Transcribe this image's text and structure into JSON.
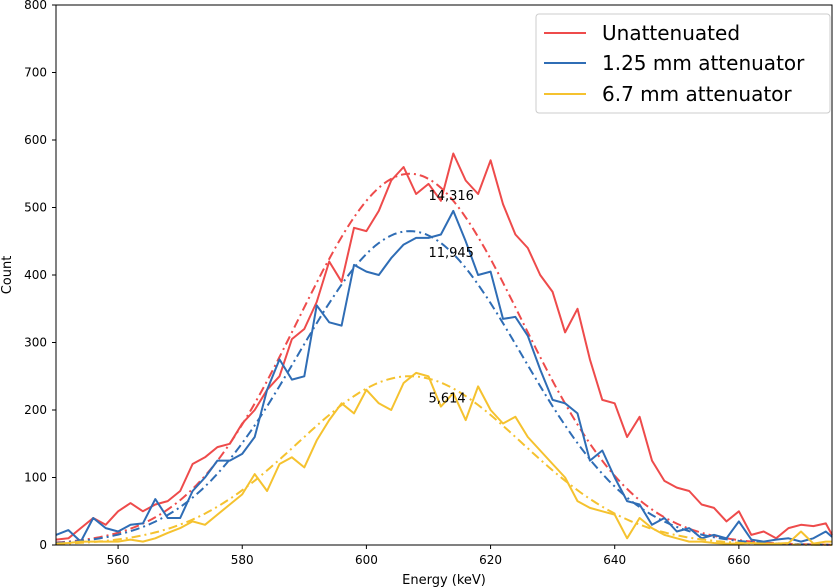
{
  "chart_data": {
    "type": "line",
    "title": "",
    "xlabel": "Energy (keV)",
    "ylabel": "Count",
    "xlim": [
      550,
      675
    ],
    "ylim": [
      0,
      800
    ],
    "xticks": [
      560,
      580,
      600,
      620,
      640,
      660
    ],
    "yticks": [
      0,
      100,
      200,
      300,
      400,
      500,
      600,
      700,
      800
    ],
    "grid": false,
    "legend_position": "top-right",
    "series": [
      {
        "name": "Unattenuated",
        "color": "#ee4b4b",
        "x": [
          550,
          552,
          554,
          556,
          558,
          560,
          562,
          564,
          566,
          568,
          570,
          572,
          574,
          576,
          578,
          580,
          582,
          584,
          586,
          588,
          590,
          592,
          594,
          596,
          598,
          600,
          602,
          604,
          606,
          608,
          610,
          612,
          614,
          616,
          618,
          620,
          622,
          624,
          626,
          628,
          630,
          632,
          634,
          636,
          638,
          640,
          642,
          644,
          646,
          648,
          650,
          652,
          654,
          656,
          658,
          660,
          662,
          664,
          666,
          668,
          670,
          672,
          674,
          675
        ],
        "values": [
          8,
          10,
          25,
          40,
          30,
          50,
          62,
          50,
          60,
          65,
          80,
          120,
          130,
          145,
          150,
          180,
          200,
          230,
          250,
          305,
          320,
          360,
          420,
          390,
          470,
          465,
          495,
          540,
          560,
          520,
          535,
          510,
          580,
          540,
          520,
          570,
          505,
          460,
          440,
          400,
          375,
          315,
          350,
          275,
          215,
          210,
          160,
          190,
          125,
          95,
          85,
          80,
          60,
          55,
          35,
          50,
          15,
          20,
          10,
          25,
          30,
          28,
          32,
          15
        ],
        "fit_peak": 550,
        "fit_center": 607,
        "fit_sigma": 18,
        "annotation": "14,316"
      },
      {
        "name": "1.25 mm attenuator",
        "color": "#2f6db5",
        "x": [
          550,
          552,
          554,
          556,
          558,
          560,
          562,
          564,
          566,
          568,
          570,
          572,
          574,
          576,
          578,
          580,
          582,
          584,
          586,
          588,
          590,
          592,
          594,
          596,
          598,
          600,
          602,
          604,
          606,
          608,
          610,
          612,
          614,
          616,
          618,
          620,
          622,
          624,
          626,
          628,
          630,
          632,
          634,
          636,
          638,
          640,
          642,
          644,
          646,
          648,
          650,
          652,
          654,
          656,
          658,
          660,
          662,
          664,
          666,
          668,
          670,
          672,
          674,
          675
        ],
        "values": [
          15,
          22,
          5,
          40,
          25,
          20,
          30,
          32,
          68,
          40,
          40,
          80,
          100,
          125,
          125,
          135,
          160,
          230,
          275,
          245,
          250,
          355,
          330,
          325,
          415,
          405,
          400,
          425,
          445,
          455,
          455,
          460,
          495,
          450,
          400,
          405,
          335,
          338,
          310,
          260,
          215,
          210,
          195,
          125,
          140,
          100,
          65,
          60,
          30,
          40,
          20,
          25,
          10,
          15,
          10,
          35,
          8,
          5,
          8,
          10,
          5,
          10,
          20,
          12
        ],
        "fit_peak": 465,
        "fit_center": 607,
        "fit_sigma": 18,
        "annotation": "11,945"
      },
      {
        "name": "6.7 mm attenuator",
        "color": "#f5c22f",
        "x": [
          550,
          552,
          554,
          556,
          558,
          560,
          562,
          564,
          566,
          568,
          570,
          572,
          574,
          576,
          578,
          580,
          582,
          584,
          586,
          588,
          590,
          592,
          594,
          596,
          598,
          600,
          602,
          604,
          606,
          608,
          610,
          612,
          614,
          616,
          618,
          620,
          622,
          624,
          626,
          628,
          630,
          632,
          634,
          636,
          638,
          640,
          642,
          644,
          646,
          648,
          650,
          652,
          654,
          656,
          658,
          660,
          662,
          664,
          666,
          668,
          670,
          672,
          674,
          675
        ],
        "values": [
          2,
          3,
          5,
          5,
          5,
          5,
          8,
          5,
          10,
          18,
          25,
          35,
          30,
          45,
          60,
          75,
          105,
          80,
          120,
          130,
          115,
          155,
          185,
          210,
          195,
          230,
          210,
          200,
          240,
          255,
          250,
          205,
          225,
          185,
          235,
          200,
          180,
          190,
          160,
          140,
          120,
          100,
          65,
          55,
          50,
          45,
          10,
          40,
          25,
          15,
          10,
          5,
          5,
          3,
          2,
          2,
          3,
          2,
          2,
          3,
          20,
          2,
          5,
          5
        ],
        "fit_peak": 250,
        "fit_center": 607,
        "fit_sigma": 18,
        "annotation": "5,614"
      }
    ]
  }
}
